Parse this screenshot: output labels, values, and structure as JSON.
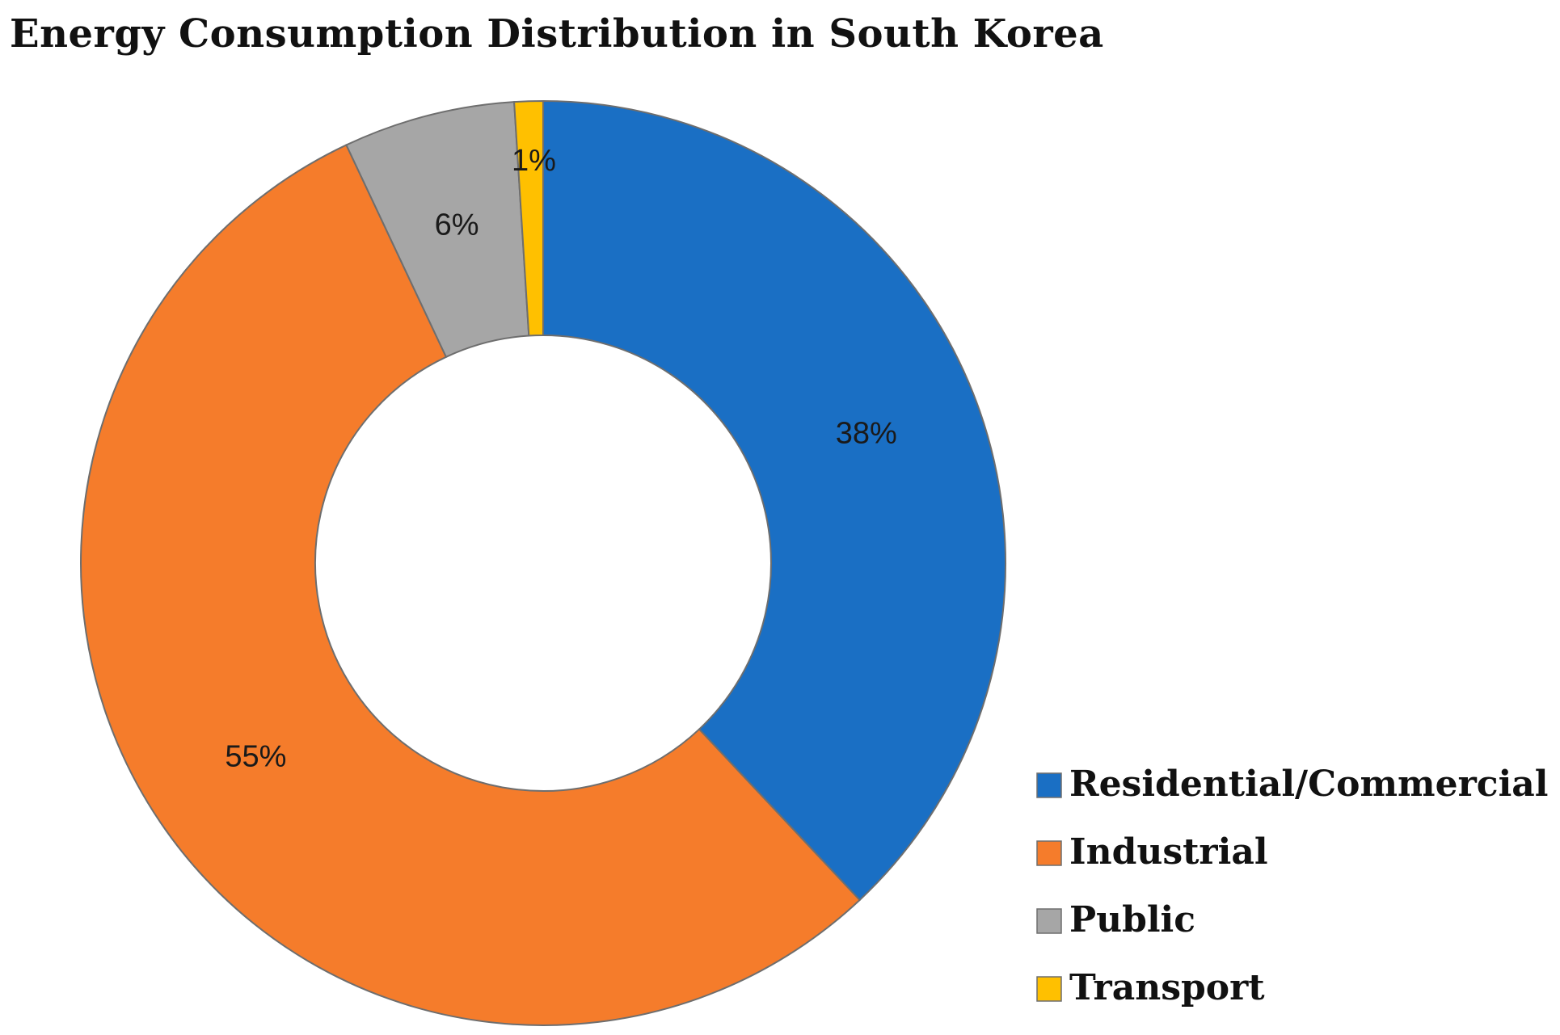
{
  "chart_data": {
    "type": "pie",
    "variant": "donut",
    "title": "Energy Consumption Distribution in South Korea",
    "categories": [
      "Residential/Commercial",
      "Industrial",
      "Public",
      "Transport"
    ],
    "values": [
      38,
      55,
      6,
      1
    ],
    "labels": [
      "38%",
      "55%",
      "6%",
      "1%"
    ],
    "unit": "%",
    "colors": [
      "#1a6fc4",
      "#f57c2b",
      "#a6a6a6",
      "#ffc000"
    ],
    "legend": {
      "placement": "bottom-right",
      "entries": [
        "Residential/Commercial",
        "Industrial",
        "Public",
        "Transport"
      ]
    }
  }
}
